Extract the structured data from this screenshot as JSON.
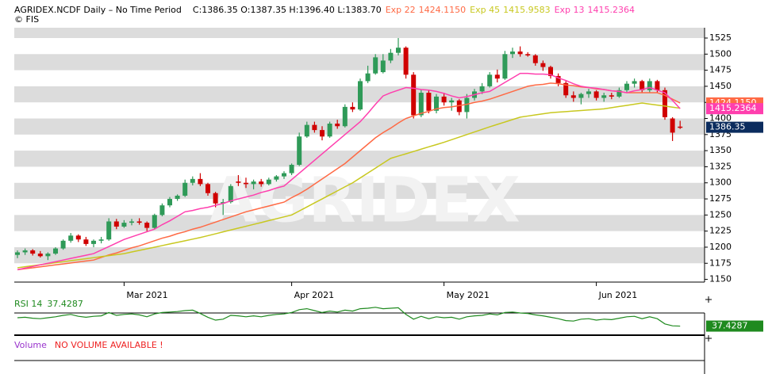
{
  "header": {
    "title": "AGRIDEX.NCDF Daily –  No Time Period",
    "quote": "C:1386.35 O:1387.35 H:1396.40 L:1383.70",
    "source": "© FIS"
  },
  "chart_data": {
    "type": "candlestick",
    "watermark": "AGRIDEX",
    "categories": [
      null,
      null,
      null,
      null,
      null,
      null,
      null,
      null,
      null,
      null,
      null,
      null,
      null,
      null,
      "Mar 2021",
      null,
      null,
      null,
      null,
      null,
      null,
      null,
      null,
      null,
      null,
      null,
      null,
      null,
      null,
      null,
      null,
      null,
      null,
      null,
      null,
      null,
      "Apr 2021",
      null,
      null,
      null,
      null,
      null,
      null,
      null,
      null,
      null,
      null,
      null,
      null,
      null,
      null,
      null,
      null,
      null,
      null,
      null,
      "May 2021",
      null,
      null,
      null,
      null,
      null,
      null,
      null,
      null,
      null,
      null,
      null,
      null,
      null,
      null,
      null,
      null,
      null,
      null,
      null,
      "Jun 2021",
      null,
      null,
      null,
      null,
      null,
      null,
      null,
      null,
      null,
      null,
      null
    ],
    "open": [
      1188,
      1192,
      1195,
      1190,
      1186,
      1190,
      1198,
      1210,
      1218,
      1212,
      1205,
      1210,
      1212,
      1240,
      1232,
      1238,
      1240,
      1238,
      1230,
      1250,
      1265,
      1275,
      1280,
      1300,
      1306,
      1298,
      1284,
      1268,
      1270,
      1302,
      1300,
      1298,
      1302,
      1298,
      1305,
      1310,
      1315,
      1328,
      1372,
      1390,
      1382,
      1372,
      1392,
      1388,
      1418,
      1414,
      1458,
      1470,
      1472,
      1490,
      1502,
      1510,
      1468,
      1405,
      1440,
      1412,
      1434,
      1425,
      1428,
      1410,
      1432,
      1442,
      1450,
      1468,
      1462,
      1500,
      1504,
      1500,
      1498,
      1486,
      1480,
      1466,
      1455,
      1436,
      1432,
      1438,
      1442,
      1432,
      1436,
      1434,
      1444,
      1454,
      1458,
      1444,
      1458,
      1444,
      1400,
      1387.35
    ],
    "high": [
      1195,
      1198,
      1197,
      1194,
      1192,
      1200,
      1212,
      1222,
      1220,
      1216,
      1212,
      1216,
      1245,
      1244,
      1242,
      1244,
      1245,
      1240,
      1252,
      1268,
      1278,
      1282,
      1305,
      1310,
      1315,
      1300,
      1286,
      1275,
      1298,
      1312,
      1308,
      1305,
      1306,
      1308,
      1312,
      1318,
      1330,
      1378,
      1395,
      1395,
      1388,
      1395,
      1398,
      1422,
      1425,
      1462,
      1482,
      1500,
      1500,
      1508,
      1525,
      1512,
      1472,
      1445,
      1444,
      1438,
      1440,
      1432,
      1430,
      1438,
      1446,
      1455,
      1472,
      1476,
      1505,
      1510,
      1512,
      1503,
      1500,
      1490,
      1482,
      1470,
      1458,
      1442,
      1440,
      1446,
      1444,
      1440,
      1440,
      1448,
      1458,
      1462,
      1460,
      1462,
      1460,
      1448,
      1402,
      1396.4
    ],
    "low": [
      1183,
      1188,
      1187,
      1184,
      1180,
      1188,
      1196,
      1207,
      1208,
      1202,
      1200,
      1206,
      1210,
      1228,
      1230,
      1234,
      1235,
      1225,
      1228,
      1248,
      1262,
      1272,
      1278,
      1296,
      1295,
      1280,
      1262,
      1250,
      1268,
      1295,
      1292,
      1290,
      1294,
      1296,
      1302,
      1306,
      1312,
      1326,
      1370,
      1378,
      1366,
      1370,
      1384,
      1386,
      1410,
      1412,
      1455,
      1468,
      1470,
      1486,
      1498,
      1462,
      1400,
      1402,
      1408,
      1408,
      1420,
      1412,
      1405,
      1400,
      1428,
      1438,
      1448,
      1456,
      1460,
      1494,
      1496,
      1496,
      1482,
      1474,
      1462,
      1450,
      1432,
      1426,
      1422,
      1432,
      1428,
      1426,
      1430,
      1432,
      1440,
      1448,
      1440,
      1440,
      1440,
      1398,
      1365,
      1383.7
    ],
    "close": [
      1192,
      1195,
      1190,
      1186,
      1190,
      1198,
      1210,
      1218,
      1212,
      1205,
      1210,
      1212,
      1240,
      1232,
      1238,
      1240,
      1238,
      1230,
      1250,
      1265,
      1275,
      1280,
      1300,
      1306,
      1298,
      1284,
      1268,
      1270,
      1295,
      1300,
      1298,
      1302,
      1298,
      1305,
      1310,
      1315,
      1328,
      1372,
      1390,
      1382,
      1372,
      1392,
      1388,
      1418,
      1414,
      1458,
      1470,
      1495,
      1490,
      1502,
      1510,
      1468,
      1405,
      1440,
      1412,
      1434,
      1425,
      1428,
      1410,
      1432,
      1442,
      1450,
      1468,
      1462,
      1500,
      1504,
      1500,
      1498,
      1486,
      1480,
      1466,
      1455,
      1436,
      1432,
      1438,
      1442,
      1432,
      1436,
      1434,
      1444,
      1454,
      1458,
      1444,
      1458,
      1444,
      1402,
      1378,
      1386.35
    ],
    "up_color": "#2f9a58",
    "down_color": "#d00000",
    "last_price_color": "#0b2c5e",
    "ylim": [
      1147,
      1541
    ],
    "yticks": [
      1150,
      1175,
      1200,
      1225,
      1250,
      1275,
      1300,
      1325,
      1350,
      1375,
      1400,
      1425,
      1450,
      1475,
      1500,
      1525
    ],
    "series": [
      {
        "name": "Exp 22",
        "color": "#ff6a45",
        "last_label": "1424.1150",
        "values": [
          1165,
          1166.5,
          1168,
          1169.5,
          1171,
          1172.5,
          1174,
          1175.5,
          1177,
          1178.5,
          1180,
          1184,
          1188,
          1191,
          1195,
          1199,
          1202,
          1206,
          1210,
          1214,
          1217,
          1221,
          1224,
          1228,
          1231,
          1235,
          1239,
          1243,
          1247,
          1251,
          1255,
          1258,
          1261,
          1264,
          1267,
          1270,
          1277,
          1283,
          1290,
          1298,
          1306,
          1314,
          1322,
          1330,
          1340,
          1350,
          1360,
          1370,
          1378,
          1385,
          1393,
          1400,
          1404,
          1408,
          1411,
          1415,
          1417,
          1418,
          1420,
          1422,
          1425,
          1427,
          1430,
          1434,
          1438,
          1442,
          1446,
          1450,
          1452,
          1453,
          1455,
          1454,
          1452,
          1451,
          1449,
          1448,
          1446,
          1445,
          1443,
          1442,
          1440,
          1440,
          1440,
          1440,
          1440,
          1436,
          1430,
          1424.115
        ]
      },
      {
        "name": "Exp 45",
        "color": "#c8c820",
        "last_label": "1415.9583",
        "values": [
          1168,
          1169.6,
          1171.1,
          1172.7,
          1174.3,
          1175.9,
          1177.4,
          1179,
          1180.6,
          1182.1,
          1183.7,
          1185.3,
          1186.9,
          1188.4,
          1190,
          1192.5,
          1195,
          1197.5,
          1200,
          1202.5,
          1205,
          1207.5,
          1210,
          1212.5,
          1215,
          1217.9,
          1220.8,
          1223.8,
          1226.7,
          1229.6,
          1232.5,
          1235.4,
          1238.3,
          1241.3,
          1244.2,
          1247.1,
          1250,
          1256.3,
          1262.5,
          1268.8,
          1275,
          1281.3,
          1287.5,
          1293.8,
          1300,
          1307.6,
          1315.2,
          1322.8,
          1330.4,
          1338,
          1341.6,
          1345.1,
          1348.7,
          1352.3,
          1355.9,
          1359.4,
          1363,
          1367,
          1371,
          1375,
          1379,
          1383,
          1387,
          1390.8,
          1394.5,
          1398.3,
          1402,
          1403.8,
          1405.5,
          1407.3,
          1409,
          1409.9,
          1410.7,
          1411.6,
          1412.4,
          1413.3,
          1414.1,
          1415,
          1416.8,
          1418.6,
          1420.4,
          1422.2,
          1424,
          1422.4,
          1420.8,
          1419.2,
          1417.6,
          1415.9583
        ]
      },
      {
        "name": "Exp 13",
        "color": "#ff3fae",
        "last_label": "1415.2364",
        "values": [
          1165,
          1167.5,
          1170,
          1172.5,
          1175,
          1177.5,
          1180,
          1182.5,
          1185,
          1187.5,
          1190,
          1195.5,
          1201,
          1206.5,
          1212,
          1216,
          1220,
          1224,
          1228,
          1235,
          1241,
          1248,
          1255,
          1257,
          1260,
          1262,
          1265,
          1268,
          1272,
          1275,
          1278,
          1281,
          1285,
          1288,
          1292,
          1295,
          1305,
          1315,
          1325,
          1335,
          1345,
          1355,
          1365,
          1375,
          1385,
          1395,
          1408,
          1422,
          1435,
          1440,
          1444,
          1448,
          1447,
          1445,
          1444,
          1442,
          1439,
          1435,
          1432,
          1434,
          1437,
          1440,
          1442,
          1449,
          1456,
          1463,
          1470,
          1470,
          1469,
          1469,
          1468,
          1463,
          1459,
          1454,
          1450,
          1448,
          1447,
          1445,
          1443,
          1442,
          1440,
          1443,
          1445,
          1448,
          1444,
          1440,
          1428,
          1415.2364
        ]
      }
    ]
  },
  "rsi": {
    "name": "RSI 14",
    "color": "#1f8a1f",
    "ylim": [
      20,
      80
    ],
    "values": [
      55,
      56,
      54,
      53,
      55,
      57,
      60,
      62,
      58,
      56,
      58,
      59,
      66,
      60,
      62,
      63,
      61,
      57,
      63,
      66,
      67,
      68,
      70,
      71,
      64,
      56,
      50,
      52,
      60,
      59,
      57,
      59,
      57,
      60,
      62,
      63,
      66,
      72,
      74,
      70,
      66,
      69,
      67,
      71,
      69,
      74,
      75,
      77,
      74,
      75,
      76,
      62,
      52,
      58,
      53,
      57,
      55,
      56,
      52,
      57,
      59,
      60,
      63,
      61,
      66,
      67,
      65,
      64,
      61,
      59,
      56,
      53,
      49,
      48,
      52,
      53,
      50,
      52,
      51,
      54,
      57,
      58,
      53,
      57,
      53,
      42,
      38,
      37.4287
    ]
  },
  "volume": {
    "label": "Volume",
    "message": "NO VOLUME AVAILABLE !"
  }
}
